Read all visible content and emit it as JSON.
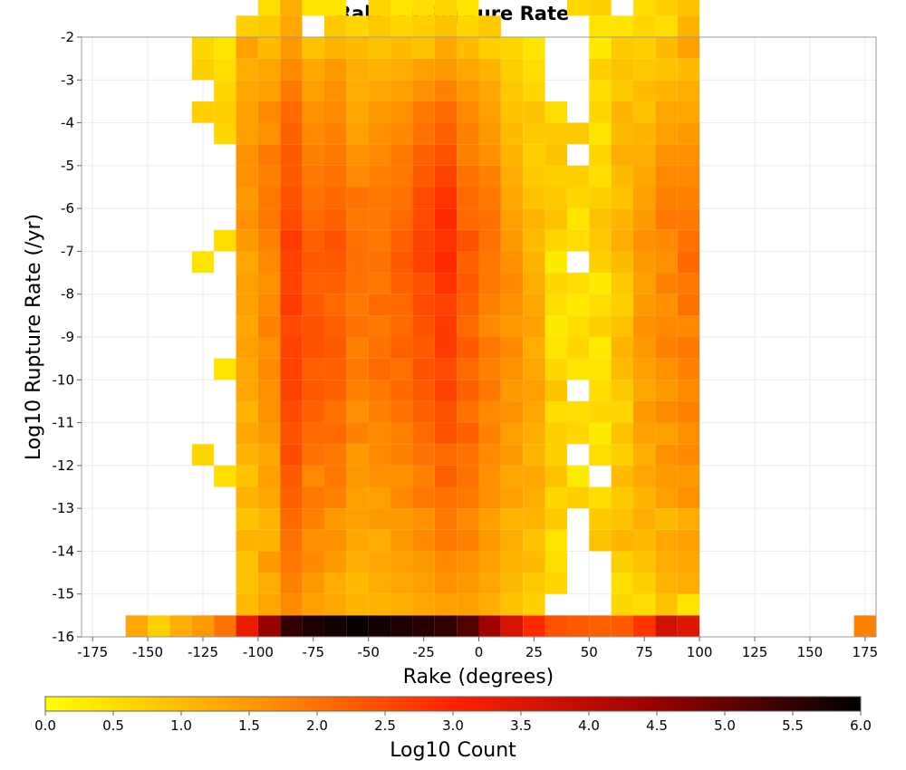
{
  "chart_data": {
    "type": "heatmap",
    "title": "Rake vs Rupture Rate",
    "xlabel": "Rake (degrees)",
    "ylabel": "Log10 Rupture Rate (/yr)",
    "xlim": [
      -180,
      180
    ],
    "ylim": [
      -16,
      -2
    ],
    "x_ticks": [
      -175,
      -150,
      -125,
      -100,
      -75,
      -50,
      -25,
      0,
      25,
      50,
      75,
      100,
      125,
      150,
      175
    ],
    "y_ticks": [
      -2,
      -3,
      -4,
      -5,
      -6,
      -7,
      -8,
      -9,
      -10,
      -11,
      -12,
      -13,
      -14,
      -15,
      -16
    ],
    "grid": true,
    "colorbar": {
      "label": "Log10 Count",
      "range": [
        0,
        6
      ],
      "ticks": [
        "0.0",
        "0.5",
        "1.0",
        "1.5",
        "2.0",
        "2.5",
        "3.0",
        "3.5",
        "4.0",
        "4.5",
        "5.0",
        "5.5",
        "6.0"
      ],
      "colors": [
        "#ffff00",
        "#ff9900",
        "#ff2200",
        "#990000",
        "#000000"
      ]
    },
    "cell_size": {
      "rake_degrees": 10,
      "log10_rate": 0.5
    },
    "columns": [
      {
        "x": -155,
        "y_min": -16.0,
        "values": [
          1.3
        ]
      },
      {
        "x": -145,
        "y_min": -16.0,
        "values": [
          0.7
        ]
      },
      {
        "x": -135,
        "y_min": -16.0,
        "values": [
          1.2
        ]
      },
      {
        "x": -125,
        "y_min": -16.0,
        "values": [
          1.5,
          0,
          0,
          0,
          0,
          0,
          0,
          0,
          0.6,
          0,
          0,
          0,
          0,
          0,
          0,
          0,
          0,
          0.4,
          0,
          0,
          0,
          0,
          0,
          0,
          0.7,
          0,
          0.7,
          0.6,
          0,
          0,
          0,
          0.4
        ]
      },
      {
        "x": -115,
        "y_min": -16.0,
        "values": [
          2.0,
          0,
          0,
          0,
          0,
          0,
          0,
          0.5,
          0,
          0,
          0,
          0,
          0.4,
          0,
          0,
          0,
          0,
          0,
          0.5,
          0,
          0,
          0,
          0,
          0.6,
          0.7,
          0.6,
          0.5,
          0.4
        ]
      },
      {
        "x": -105,
        "y_min": -16.0,
        "values": [
          3.3,
          1.0,
          0.9,
          0.9,
          1.1,
          0.9,
          1.1,
          0.9,
          1.1,
          1.3,
          1.1,
          1.3,
          1.3,
          1.4,
          1.3,
          1.4,
          1.4,
          1.3,
          1.5,
          1.6,
          1.5,
          1.6,
          1.6,
          1.4,
          1.4,
          1.3,
          1.2,
          1.4,
          0.7
        ]
      },
      {
        "x": -95,
        "y_min": -16.0,
        "values": [
          4.5,
          1.3,
          1.2,
          1.5,
          1.1,
          1.1,
          1.3,
          1.4,
          1.3,
          1.5,
          1.6,
          1.6,
          1.7,
          1.6,
          1.8,
          1.7,
          1.6,
          1.7,
          1.8,
          1.9,
          1.9,
          1.8,
          1.9,
          1.6,
          1.7,
          1.4,
          1.3,
          1.0,
          0.8,
          0.5
        ]
      },
      {
        "x": -85,
        "y_min": -16.0,
        "values": [
          5.5,
          1.7,
          1.8,
          1.9,
          2.0,
          2.1,
          2.2,
          2.3,
          2.5,
          2.4,
          2.5,
          2.6,
          2.6,
          2.6,
          2.5,
          2.7,
          2.6,
          2.6,
          2.7,
          2.5,
          2.4,
          2.3,
          2.3,
          2.2,
          2.1,
          1.9,
          1.7,
          1.5,
          1.3,
          1.2,
          1.0,
          0.8,
          0.5
        ]
      },
      {
        "x": -75,
        "y_min": -16.0,
        "values": [
          5.7,
          1.4,
          1.5,
          1.7,
          1.6,
          1.8,
          1.9,
          1.7,
          2.0,
          2.1,
          2.2,
          2.3,
          2.2,
          2.4,
          2.4,
          2.3,
          2.2,
          2.3,
          2.2,
          2.1,
          2.0,
          1.9,
          1.8,
          1.7,
          1.6,
          1.4,
          1.3,
          0.9,
          0,
          0.4,
          0.4
        ]
      },
      {
        "x": -65,
        "y_min": -16.0,
        "values": [
          5.8,
          1.3,
          1.2,
          1.5,
          1.6,
          1.5,
          1.8,
          1.9,
          1.9,
          2.1,
          2.0,
          2.2,
          2.2,
          2.3,
          2.2,
          2.1,
          2.2,
          2.3,
          2.4,
          2.2,
          2.1,
          2.0,
          1.9,
          1.8,
          1.7,
          1.6,
          1.5,
          1.1,
          0.8,
          0.4,
          0.5
        ]
      },
      {
        "x": -55,
        "y_min": -16.0,
        "values": [
          5.9,
          1.1,
          1.0,
          1.2,
          1.3,
          1.4,
          1.4,
          1.5,
          1.5,
          1.8,
          1.6,
          1.8,
          1.9,
          1.8,
          2.0,
          1.9,
          2.0,
          2.0,
          2.0,
          1.9,
          2.0,
          1.7,
          1.6,
          1.4,
          1.3,
          1.2,
          1.2,
          1.0,
          0.6,
          0,
          0.3
        ]
      },
      {
        "x": -45,
        "y_min": -16.0,
        "values": [
          5.8,
          1.1,
          1.2,
          1.3,
          1.2,
          1.5,
          1.4,
          1.6,
          1.7,
          1.7,
          1.8,
          1.9,
          2.1,
          2.0,
          1.9,
          2.1,
          1.9,
          2.0,
          1.9,
          1.9,
          1.9,
          1.8,
          1.7,
          1.6,
          1.5,
          1.3,
          1.1,
          0.9,
          0.8,
          0.6
        ]
      },
      {
        "x": -35,
        "y_min": -16.0,
        "values": [
          5.7,
          1.2,
          1.3,
          1.4,
          1.5,
          1.5,
          1.7,
          1.6,
          1.8,
          1.8,
          2.0,
          2.1,
          2.0,
          2.2,
          2.1,
          2.1,
          2.2,
          2.3,
          2.2,
          2.1,
          2.0,
          1.9,
          1.9,
          1.7,
          1.6,
          1.4,
          1.2,
          1.0,
          0.6,
          0.4,
          0.6
        ]
      },
      {
        "x": -25,
        "y_min": -16.0,
        "values": [
          5.6,
          1.3,
          1.4,
          1.5,
          1.7,
          1.6,
          1.9,
          1.8,
          2.0,
          2.1,
          2.2,
          2.3,
          2.4,
          2.3,
          2.4,
          2.5,
          2.4,
          2.6,
          2.6,
          2.5,
          2.5,
          2.3,
          2.2,
          2.0,
          1.9,
          1.6,
          1.4,
          0.9,
          0.7,
          0.5,
          0.4
        ]
      },
      {
        "x": -15,
        "y_min": -16.0,
        "values": [
          5.5,
          1.4,
          1.6,
          1.7,
          1.9,
          1.9,
          2.0,
          2.2,
          2.1,
          2.4,
          2.4,
          2.6,
          2.5,
          2.7,
          2.7,
          2.6,
          2.8,
          2.9,
          2.8,
          2.9,
          2.8,
          2.6,
          2.4,
          2.2,
          2.1,
          1.8,
          1.5,
          1.3,
          0.9,
          0.6,
          0.5
        ]
      },
      {
        "x": -5,
        "y_min": -16.0,
        "values": [
          5.2,
          1.4,
          1.5,
          1.6,
          1.8,
          1.7,
          1.9,
          2.0,
          2.0,
          2.2,
          2.0,
          2.2,
          2.1,
          2.3,
          2.1,
          2.2,
          2.3,
          2.2,
          2.4,
          2.1,
          2.1,
          2.0,
          1.8,
          1.8,
          1.7,
          1.5,
          1.3,
          1.0,
          0.6,
          0.4
        ]
      },
      {
        "x": 5,
        "y_min": -16.0,
        "values": [
          4.4,
          1.2,
          1.3,
          1.4,
          1.5,
          1.4,
          1.6,
          1.6,
          1.7,
          1.8,
          1.7,
          1.9,
          1.8,
          1.9,
          1.7,
          1.8,
          1.9,
          1.9,
          2.0,
          2.0,
          1.9,
          1.8,
          1.6,
          1.5,
          1.4,
          1.3,
          1.1,
          0.7,
          0.8
        ]
      },
      {
        "x": 15,
        "y_min": -16.0,
        "values": [
          3.6,
          0.9,
          1.0,
          1.1,
          1.2,
          1.1,
          1.4,
          1.3,
          1.5,
          1.4,
          1.6,
          1.5,
          1.6,
          1.7,
          1.5,
          1.6,
          1.7,
          1.6,
          1.5,
          1.4,
          1.3,
          1.2,
          1.1,
          1.0,
          0.9,
          0.8,
          0.7,
          0.6
        ]
      },
      {
        "x": 25,
        "y_min": -16.0,
        "values": [
          2.9,
          0.7,
          0.8,
          1.0,
          0.9,
          1.1,
          1.2,
          1.3,
          1.1,
          1.2,
          1.3,
          1.4,
          1.3,
          1.2,
          1.4,
          1.3,
          1.2,
          1.1,
          1.0,
          1.1,
          0.9,
          0.8,
          0.7,
          0.8,
          0.9,
          0.6,
          0.5,
          0.4
        ]
      },
      {
        "x": 35,
        "y_min": -16.0,
        "values": [
          2.4,
          0,
          0.6,
          0.5,
          0.4,
          0.8,
          0.6,
          0.9,
          0.7,
          0.7,
          0.5,
          0.9,
          0.6,
          0.4,
          0.3,
          0.5,
          0.6,
          0.3,
          0.6,
          0.9,
          0.8,
          0.7,
          0.9,
          0.8,
          0.5
        ]
      },
      {
        "x": 45,
        "y_min": -16.0,
        "values": [
          2.3,
          0,
          0,
          0,
          0,
          0,
          0.7,
          0.3,
          0,
          0.6,
          0.5,
          0,
          0.4,
          0.6,
          0.5,
          0.3,
          0.5,
          0,
          0.5,
          0.4,
          0.6,
          0.7,
          0,
          0.8,
          0,
          0,
          0,
          0,
          0,
          0.6
        ]
      },
      {
        "x": 55,
        "y_min": -16.0,
        "values": [
          2.2,
          0,
          0,
          0,
          0.9,
          0.8,
          0.5,
          0,
          0.5,
          0.3,
          0.6,
          0.5,
          0.4,
          0.3,
          0.7,
          0.5,
          0.3,
          0.7,
          0.8,
          0.9,
          0.7,
          0.5,
          0.6,
          0.4,
          0.6,
          0.5,
          0.7,
          0.3,
          0.4,
          0.7
        ]
      },
      {
        "x": 65,
        "y_min": -16.0,
        "values": [
          2.3,
          0.6,
          0.5,
          0.7,
          1.1,
          0.9,
          0.8,
          1.0,
          0.7,
          0.9,
          0.6,
          0.8,
          1.0,
          1.1,
          0.9,
          0.7,
          0.8,
          1.0,
          1.2,
          1.1,
          0.9,
          1.0,
          1.2,
          1.0,
          1.1,
          0.8,
          0.9,
          0.8,
          0.4
        ]
      },
      {
        "x": 75,
        "y_min": -16.0,
        "values": [
          2.8,
          0.5,
          0.7,
          0.9,
          1.0,
          1.2,
          1.1,
          1.3,
          1.2,
          1.4,
          1.5,
          1.3,
          1.4,
          1.5,
          1.6,
          1.5,
          1.4,
          1.5,
          1.6,
          1.5,
          1.4,
          1.3,
          1.2,
          1.1,
          0.9,
          1.0,
          0.8,
          0.7,
          0.6,
          0.5,
          0.8,
          0.5
        ]
      },
      {
        "x": 85,
        "y_min": -16.0,
        "values": [
          3.7,
          0.9,
          1.1,
          1.2,
          1.3,
          1.0,
          1.4,
          1.5,
          1.6,
          1.4,
          1.7,
          1.5,
          1.6,
          1.8,
          1.7,
          1.6,
          1.8,
          1.6,
          1.7,
          1.9,
          1.8,
          1.7,
          1.6,
          1.4,
          1.3,
          1.1,
          0.9,
          1.0,
          0.5,
          0.7,
          1.1,
          0.6
        ]
      },
      {
        "x": 95,
        "y_min": -16.0,
        "values": [
          3.5,
          0.4,
          1.2,
          1.3,
          1.4,
          1.2,
          1.6,
          1.5,
          1.7,
          1.6,
          1.8,
          1.7,
          1.8,
          1.9,
          1.7,
          2.0,
          1.9,
          2.1,
          2.0,
          1.9,
          1.8,
          1.7,
          1.6,
          1.5,
          1.3,
          1.2,
          1.0,
          1.4,
          1.1,
          0.9,
          1.0
        ]
      },
      {
        "x": 175,
        "y_min": -16.0,
        "values": [
          1.8
        ]
      }
    ]
  }
}
